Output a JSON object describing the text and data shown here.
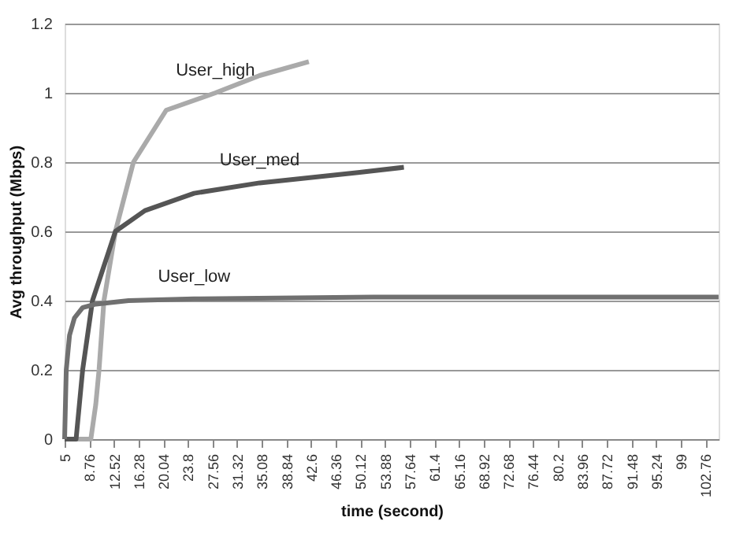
{
  "chart_data": {
    "type": "line",
    "xlabel": "time (second)",
    "ylabel": "Avg throughput (Mbps)",
    "xlim": [
      5,
      104.76
    ],
    "xticks": [
      5,
      8.76,
      12.52,
      16.28,
      20.04,
      23.8,
      27.56,
      31.32,
      35.08,
      38.84,
      42.6,
      46.36,
      50.12,
      53.88,
      57.64,
      61.4,
      65.16,
      68.92,
      72.68,
      76.44,
      80.2,
      83.96,
      87.72,
      91.48,
      95.24,
      99,
      102.76
    ],
    "ylim": [
      0,
      1.2
    ],
    "yticks": [
      0,
      0.2,
      0.4,
      0.6,
      0.8,
      1,
      1.2
    ],
    "grid": "y",
    "legend": false,
    "marker": "none",
    "line_style": "solid",
    "series": [
      {
        "name": "User_high",
        "color": "#aaaaaa",
        "x": [
          5,
          9.0,
          9.75,
          10.25,
          11,
          12.75,
          15.5,
          20.5,
          28,
          34.75,
          42.25
        ],
        "values": [
          0,
          0,
          0.1,
          0.2,
          0.4,
          0.6,
          0.8,
          0.95,
          1.0,
          1.05,
          1.09
        ]
      },
      {
        "name": "User_med",
        "color": "#555555",
        "x": [
          5,
          6.75,
          7.75,
          9.25,
          12.75,
          17.25,
          24.75,
          34.75,
          49.75,
          56.75
        ],
        "values": [
          0,
          0,
          0.2,
          0.4,
          0.6,
          0.66,
          0.71,
          0.74,
          0.77,
          0.785
        ]
      },
      {
        "name": "User_low",
        "color": "#707070",
        "x": [
          5,
          5.25,
          5.75,
          6.5,
          7.75,
          9.75,
          14.75,
          24.75,
          52,
          104.75
        ],
        "values": [
          0,
          0.2,
          0.3,
          0.35,
          0.38,
          0.39,
          0.4,
          0.405,
          0.41,
          0.41
        ]
      }
    ]
  }
}
